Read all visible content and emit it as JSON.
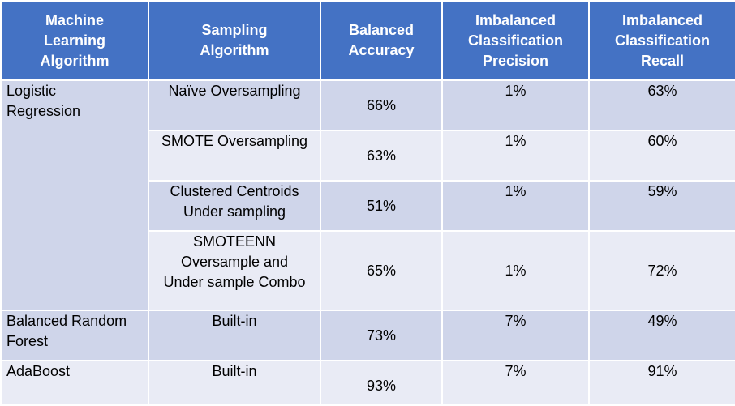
{
  "headers": {
    "ml": [
      "Machine",
      "Learning",
      "Algorithm"
    ],
    "sampling": [
      "Sampling",
      "Algorithm"
    ],
    "accuracy": [
      "Balanced",
      "Accuracy"
    ],
    "precision": [
      "Imbalanced",
      "Classification",
      "Precision"
    ],
    "recall": [
      "Imbalanced",
      "Classification",
      "Recall"
    ]
  },
  "rows": [
    {
      "algo": [
        "Logistic",
        "Regression"
      ],
      "sampling": [
        "Naïve Oversampling"
      ],
      "accuracy": "66%",
      "precision": "1%",
      "recall": "63%"
    },
    {
      "algo": [],
      "sampling": [
        "SMOTE Oversampling"
      ],
      "accuracy": "63%",
      "precision": "1%",
      "recall": "60%"
    },
    {
      "algo": [],
      "sampling": [
        "Clustered Centroids",
        "Under sampling"
      ],
      "accuracy": "51%",
      "precision": "1%",
      "recall": "59%"
    },
    {
      "algo": [],
      "sampling": [
        "SMOTEENN",
        "Oversample and",
        "Under sample Combo"
      ],
      "accuracy": "65%",
      "precision": "1%",
      "recall": "72%"
    },
    {
      "algo": [
        "Balanced Random",
        "Forest"
      ],
      "sampling": [
        "Built-in"
      ],
      "accuracy": "73%",
      "precision": "7%",
      "recall": "49%"
    },
    {
      "algo": [
        "AdaBoost"
      ],
      "sampling": [
        "Built-in"
      ],
      "accuracy": "93%",
      "precision": "7%",
      "recall": "91%"
    }
  ],
  "colors": {
    "header": "#4472c4",
    "band_dark": "#cfd5ea",
    "band_light": "#e9ebf5"
  }
}
